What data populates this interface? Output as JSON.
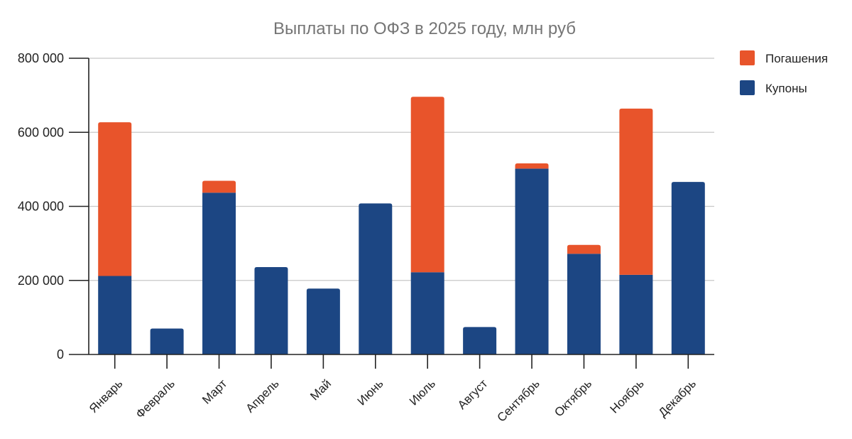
{
  "chart_data": {
    "type": "bar",
    "stacked": true,
    "title": "Выплаты по ОФЗ в 2025 году, млн руб",
    "xlabel": "",
    "ylabel": "",
    "ylim": [
      0,
      800000
    ],
    "yticks": [
      0,
      200000,
      400000,
      600000,
      800000
    ],
    "ytick_labels": [
      "0",
      "200 000",
      "400 000",
      "600 000",
      "800 000"
    ],
    "grid": true,
    "legend_position": "top-right",
    "categories": [
      "Январь",
      "Февраль",
      "Март",
      "Апрель",
      "Май",
      "Июнь",
      "Июль",
      "Август",
      "Сентябрь",
      "Октябрь",
      "Ноябрь",
      "Декабрь"
    ],
    "series": [
      {
        "name": "Купоны",
        "color": "#1c4683",
        "values": [
          212000,
          70000,
          437000,
          236000,
          178000,
          408000,
          222000,
          74000,
          502000,
          272000,
          215000,
          466000
        ]
      },
      {
        "name": "Погашения",
        "color": "#e8542b",
        "values": [
          415000,
          0,
          32000,
          0,
          0,
          0,
          474000,
          0,
          14000,
          24000,
          449000,
          0
        ]
      }
    ],
    "legend_order": [
      "Погашения",
      "Купоны"
    ]
  }
}
